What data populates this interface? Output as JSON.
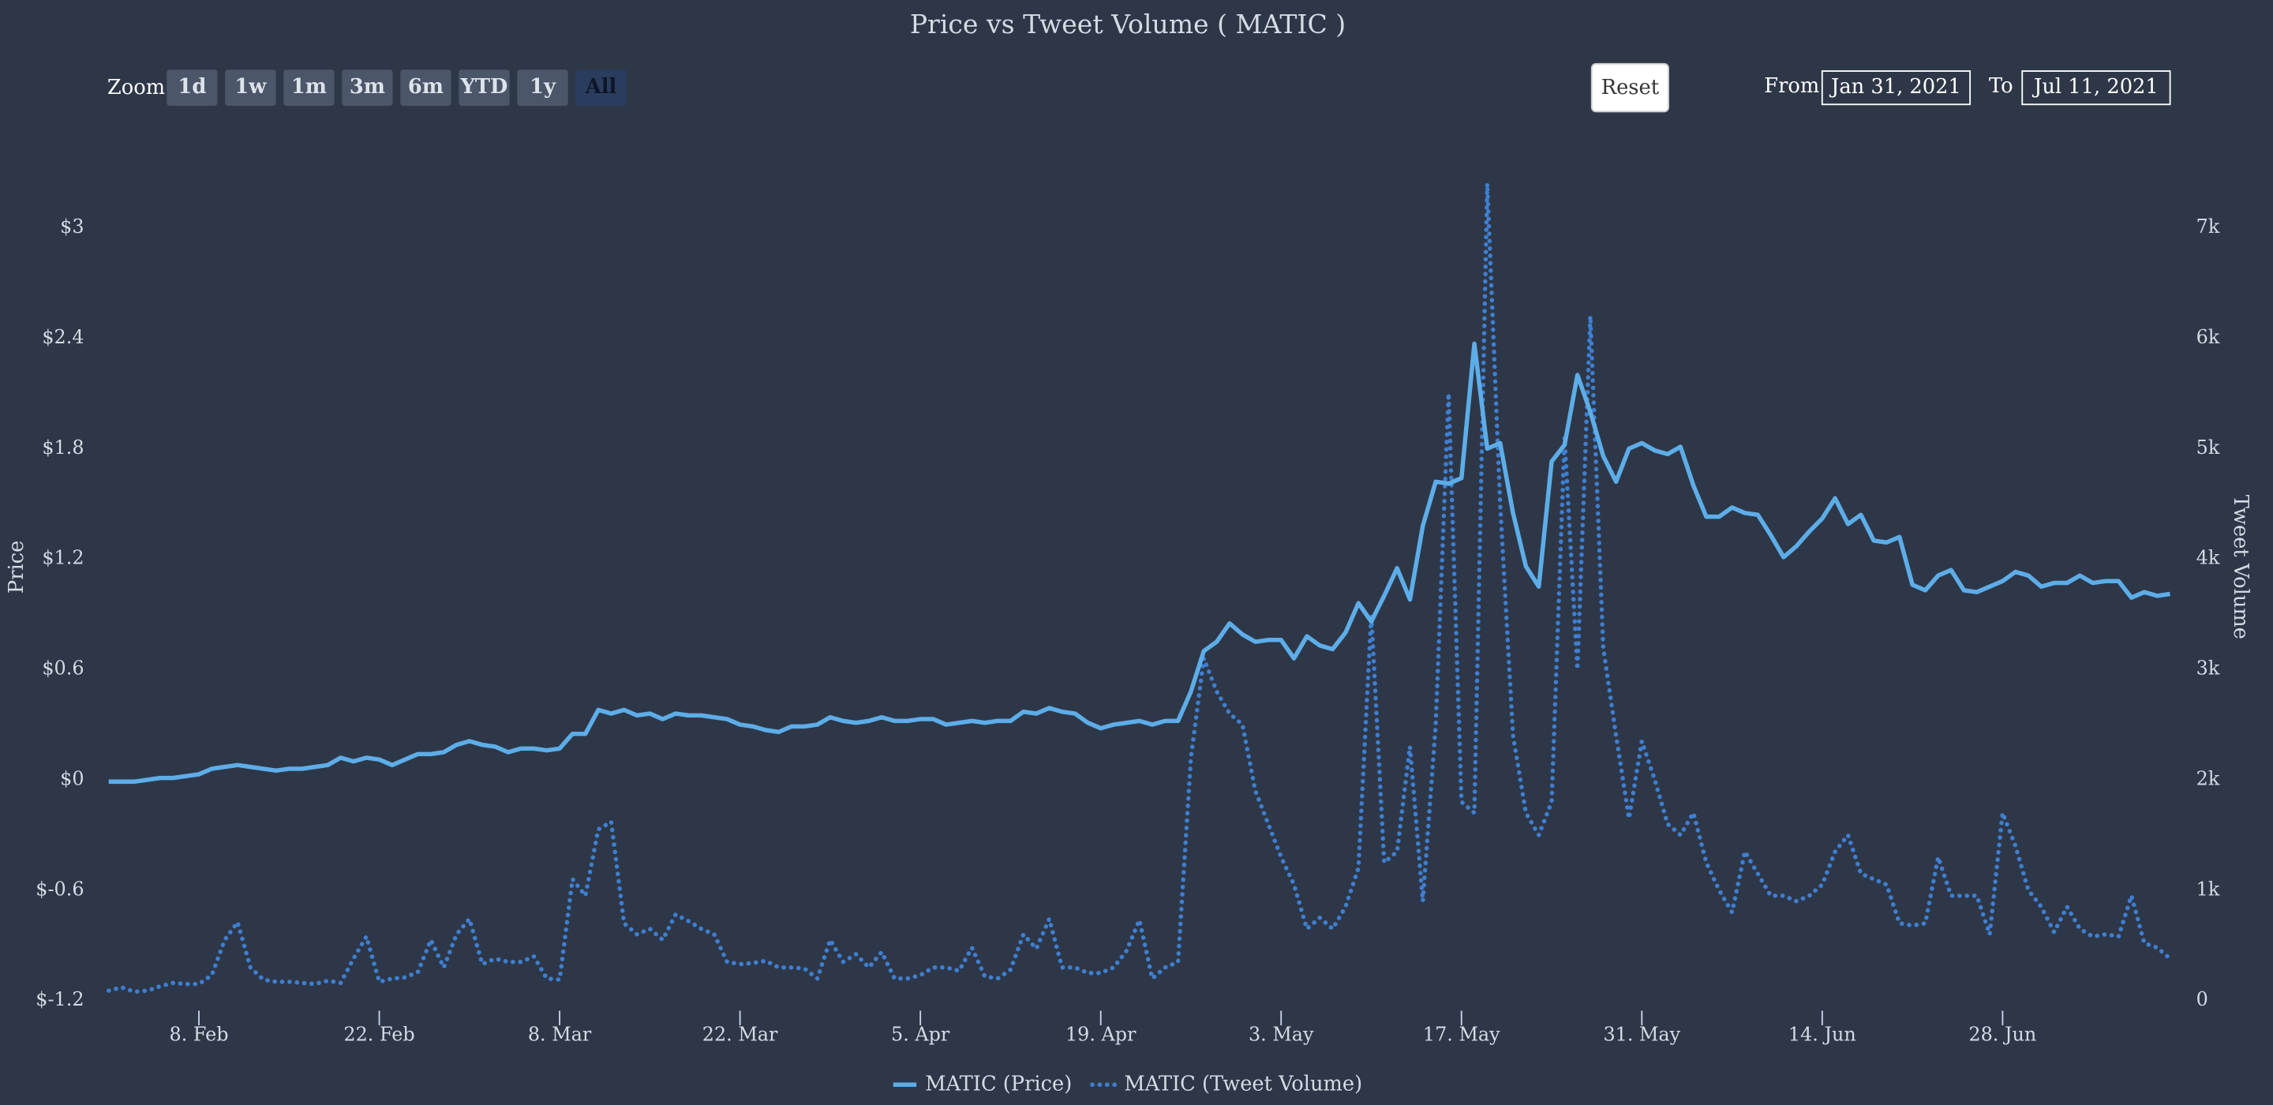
{
  "title": "Price vs Tweet Volume ( MATIC )",
  "zoom": {
    "label": "Zoom",
    "buttons": [
      "1d",
      "1w",
      "1m",
      "3m",
      "6m",
      "YTD",
      "1y",
      "All"
    ],
    "selected": 7
  },
  "reset": "Reset",
  "range": {
    "from_label": "From",
    "from": "Jan 31, 2021",
    "to_label": "To",
    "to": "Jul 11, 2021"
  },
  "chart_data": {
    "type": "line",
    "ylabel": "Price",
    "y2label": "Tweet Volume",
    "grid": false,
    "legend": "bottom",
    "x": [
      "2021-02-01",
      "2021-02-02",
      "2021-02-03",
      "2021-02-04",
      "2021-02-05",
      "2021-02-06",
      "2021-02-07",
      "2021-02-08",
      "2021-02-09",
      "2021-02-10",
      "2021-02-11",
      "2021-02-12",
      "2021-02-13",
      "2021-02-14",
      "2021-02-15",
      "2021-02-16",
      "2021-02-17",
      "2021-02-18",
      "2021-02-19",
      "2021-02-20",
      "2021-02-21",
      "2021-02-22",
      "2021-02-23",
      "2021-02-24",
      "2021-02-25",
      "2021-02-26",
      "2021-02-27",
      "2021-02-28",
      "2021-03-01",
      "2021-03-02",
      "2021-03-03",
      "2021-03-04",
      "2021-03-05",
      "2021-03-06",
      "2021-03-07",
      "2021-03-08",
      "2021-03-09",
      "2021-03-10",
      "2021-03-11",
      "2021-03-12",
      "2021-03-13",
      "2021-03-14",
      "2021-03-15",
      "2021-03-16",
      "2021-03-17",
      "2021-03-18",
      "2021-03-19",
      "2021-03-20",
      "2021-03-21",
      "2021-03-22",
      "2021-03-23",
      "2021-03-24",
      "2021-03-25",
      "2021-03-26",
      "2021-03-27",
      "2021-03-28",
      "2021-03-29",
      "2021-03-30",
      "2021-03-31",
      "2021-04-01",
      "2021-04-02",
      "2021-04-03",
      "2021-04-04",
      "2021-04-05",
      "2021-04-06",
      "2021-04-07",
      "2021-04-08",
      "2021-04-09",
      "2021-04-10",
      "2021-04-11",
      "2021-04-12",
      "2021-04-13",
      "2021-04-14",
      "2021-04-15",
      "2021-04-16",
      "2021-04-17",
      "2021-04-18",
      "2021-04-19",
      "2021-04-20",
      "2021-04-21",
      "2021-04-22",
      "2021-04-23",
      "2021-04-24",
      "2021-04-25",
      "2021-04-26",
      "2021-04-27",
      "2021-04-28",
      "2021-04-29",
      "2021-04-30",
      "2021-05-01",
      "2021-05-02",
      "2021-05-03",
      "2021-05-04",
      "2021-05-05",
      "2021-05-06",
      "2021-05-07",
      "2021-05-08",
      "2021-05-09",
      "2021-05-10",
      "2021-05-11",
      "2021-05-12",
      "2021-05-13",
      "2021-05-14",
      "2021-05-15",
      "2021-05-16",
      "2021-05-17",
      "2021-05-18",
      "2021-05-19",
      "2021-05-20",
      "2021-05-21",
      "2021-05-22",
      "2021-05-23",
      "2021-05-24",
      "2021-05-25",
      "2021-05-26",
      "2021-05-27",
      "2021-05-28",
      "2021-05-29",
      "2021-05-30",
      "2021-05-31",
      "2021-06-01",
      "2021-06-02",
      "2021-06-03",
      "2021-06-04",
      "2021-06-05",
      "2021-06-06",
      "2021-06-07",
      "2021-06-08",
      "2021-06-09",
      "2021-06-10",
      "2021-06-11",
      "2021-06-12",
      "2021-06-13",
      "2021-06-14",
      "2021-06-15",
      "2021-06-16",
      "2021-06-17",
      "2021-06-18",
      "2021-06-19",
      "2021-06-20",
      "2021-06-21",
      "2021-06-22",
      "2021-06-23",
      "2021-06-24",
      "2021-06-25",
      "2021-06-26",
      "2021-06-27",
      "2021-06-28",
      "2021-06-29",
      "2021-06-30",
      "2021-07-01",
      "2021-07-02",
      "2021-07-03",
      "2021-07-04",
      "2021-07-05",
      "2021-07-06",
      "2021-07-07",
      "2021-07-08",
      "2021-07-09",
      "2021-07-10",
      "2021-07-11"
    ],
    "xlim": [
      "2021-02-01",
      "2021-07-11"
    ],
    "xticks": [
      {
        "value": "2021-02-08",
        "label": "8. Feb"
      },
      {
        "value": "2021-02-22",
        "label": "22. Feb"
      },
      {
        "value": "2021-03-08",
        "label": "8. Mar"
      },
      {
        "value": "2021-03-22",
        "label": "22. Mar"
      },
      {
        "value": "2021-04-05",
        "label": "5. Apr"
      },
      {
        "value": "2021-04-19",
        "label": "19. Apr"
      },
      {
        "value": "2021-05-03",
        "label": "3. May"
      },
      {
        "value": "2021-05-17",
        "label": "17. May"
      },
      {
        "value": "2021-05-31",
        "label": "31. May"
      },
      {
        "value": "2021-06-14",
        "label": "14. Jun"
      },
      {
        "value": "2021-06-28",
        "label": "28. Jun"
      }
    ],
    "ylim": [
      -1.2,
      3.45
    ],
    "yticks": [
      {
        "value": -1.2,
        "label": "$-1.2"
      },
      {
        "value": -0.6,
        "label": "$-0.6"
      },
      {
        "value": 0,
        "label": "$0"
      },
      {
        "value": 0.6,
        "label": "$0.6"
      },
      {
        "value": 1.2,
        "label": "$1.2"
      },
      {
        "value": 1.8,
        "label": "$1.8"
      },
      {
        "value": 2.4,
        "label": "$2.4"
      },
      {
        "value": 3,
        "label": "$3"
      }
    ],
    "y2lim": [
      0,
      7750
    ],
    "y2ticks": [
      0,
      {
        "value": 1000,
        "label": "1k"
      },
      {
        "value": 2000,
        "label": "2k"
      },
      {
        "value": 3000,
        "label": "3k"
      },
      {
        "value": 4000,
        "label": "4k"
      },
      {
        "value": 5000,
        "label": "5k"
      },
      {
        "value": 6000,
        "label": "6k"
      },
      {
        "value": 7000,
        "label": "7k"
      }
    ],
    "series": [
      {
        "name": "MATIC (Price)",
        "color": "#5dade8",
        "dash": "solid",
        "values": [
          -0.01,
          -0.01,
          -0.01,
          0,
          0.01,
          0.01,
          0.02,
          0.03,
          0.06,
          0.07,
          0.08,
          0.07,
          0.06,
          0.05,
          0.06,
          0.06,
          0.07,
          0.08,
          0.12,
          0.1,
          0.12,
          0.11,
          0.08,
          0.11,
          0.14,
          0.14,
          0.15,
          0.19,
          0.21,
          0.19,
          0.18,
          0.15,
          0.17,
          0.17,
          0.16,
          0.17,
          0.25,
          0.25,
          0.38,
          0.36,
          0.38,
          0.35,
          0.36,
          0.33,
          0.36,
          0.35,
          0.35,
          0.34,
          0.33,
          0.3,
          0.29,
          0.27,
          0.26,
          0.29,
          0.29,
          0.3,
          0.34,
          0.32,
          0.31,
          0.32,
          0.34,
          0.32,
          0.32,
          0.33,
          0.33,
          0.3,
          0.31,
          0.32,
          0.31,
          0.32,
          0.32,
          0.37,
          0.36,
          0.39,
          0.37,
          0.36,
          0.31,
          0.28,
          0.3,
          0.31,
          0.32,
          0.3,
          0.32,
          0.32,
          0.48,
          0.7,
          0.75,
          0.85,
          0.79,
          0.75,
          0.76,
          0.76,
          0.66,
          0.78,
          0.73,
          0.71,
          0.8,
          0.96,
          0.86,
          1.0,
          1.15,
          0.98,
          1.38,
          1.62,
          1.61,
          1.64,
          2.37,
          1.8,
          1.83,
          1.45,
          1.16,
          1.05,
          1.73,
          1.82,
          2.2,
          2.0,
          1.76,
          1.62,
          1.8,
          1.83,
          1.79,
          1.77,
          1.81,
          1.6,
          1.43,
          1.43,
          1.48,
          1.45,
          1.44,
          1.33,
          1.21,
          1.27,
          1.35,
          1.42,
          1.53,
          1.39,
          1.44,
          1.3,
          1.29,
          1.32,
          1.06,
          1.03,
          1.11,
          1.14,
          1.03,
          1.02,
          1.05,
          1.08,
          1.13,
          1.11,
          1.05,
          1.07,
          1.07,
          1.11,
          1.07,
          1.08,
          1.08,
          0.99,
          1.02,
          1.0,
          1.01
        ]
      },
      {
        "name": "MATIC (Tweet Volume)",
        "color": "#3f7fd0",
        "dash": "dotted",
        "axis": "y2",
        "values": [
          90,
          120,
          80,
          90,
          130,
          160,
          150,
          150,
          230,
          550,
          710,
          300,
          190,
          170,
          170,
          160,
          150,
          180,
          160,
          380,
          580,
          170,
          200,
          210,
          260,
          550,
          300,
          600,
          740,
          330,
          380,
          350,
          350,
          400,
          200,
          190,
          1100,
          950,
          1550,
          1620,
          700,
          600,
          650,
          550,
          780,
          720,
          650,
          600,
          350,
          330,
          340,
          360,
          300,
          300,
          290,
          200,
          550,
          350,
          420,
          300,
          440,
          200,
          200,
          230,
          300,
          300,
          270,
          480,
          220,
          200,
          280,
          600,
          470,
          740,
          300,
          300,
          250,
          250,
          300,
          450,
          730,
          200,
          300,
          350,
          2200,
          3100,
          2800,
          2600,
          2500,
          1900,
          1600,
          1300,
          1050,
          650,
          750,
          650,
          850,
          1200,
          3500,
          1250,
          1350,
          2300,
          900,
          2500,
          5500,
          1800,
          1700,
          7400,
          4500,
          2400,
          1700,
          1500,
          1800,
          5100,
          3000,
          6200,
          3200,
          2400,
          1650,
          2350,
          2000,
          1600,
          1500,
          1700,
          1250,
          1000,
          800,
          1350,
          1150,
          950,
          950,
          900,
          950,
          1050,
          1350,
          1500,
          1150,
          1100,
          1050,
          700,
          680,
          700,
          1300,
          950,
          950,
          950,
          600,
          1700,
          1400,
          1000,
          850,
          620,
          850,
          650,
          580,
          600,
          580,
          950,
          520,
          480,
          380
        ]
      }
    ]
  }
}
